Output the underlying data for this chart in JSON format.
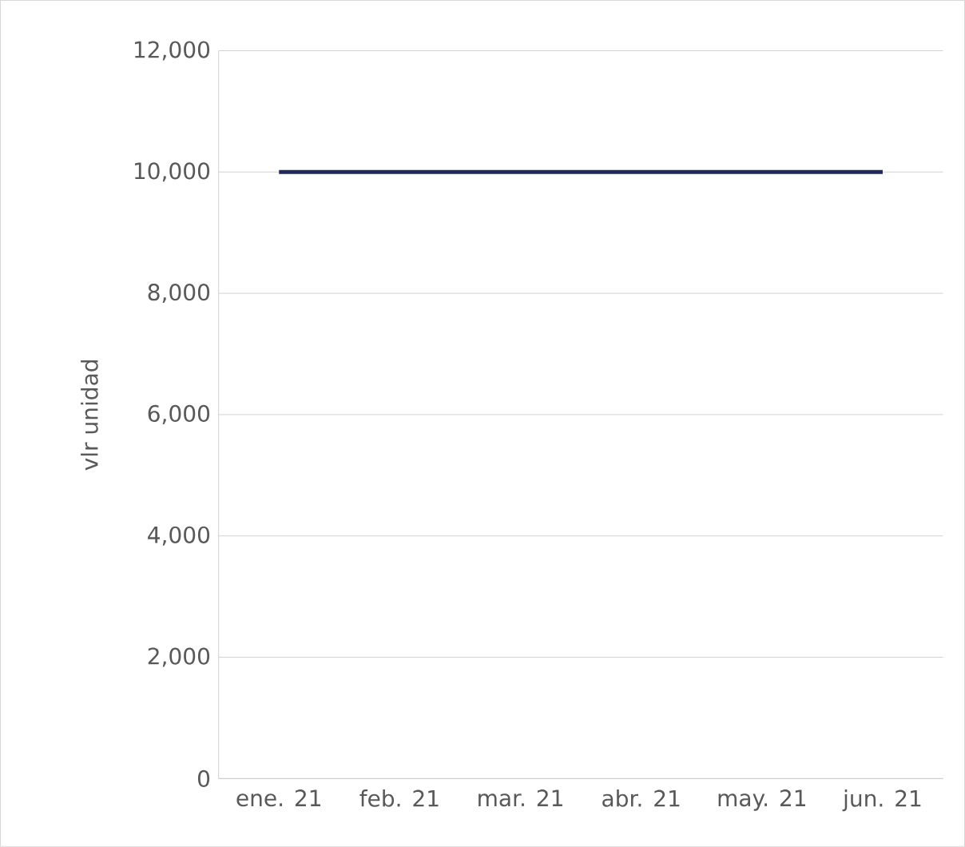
{
  "chart_data": {
    "type": "line",
    "ylabel": "vlr unidad",
    "categories": [
      "ene. 21",
      "feb. 21",
      "mar. 21",
      "abr. 21",
      "may. 21",
      "jun. 21"
    ],
    "series": [
      {
        "color": "#1f2a5c",
        "values": [
          10000,
          10000,
          10000,
          10000,
          10000,
          10000
        ]
      }
    ],
    "ylim": [
      0,
      12000
    ],
    "yticks": [
      {
        "value": 0,
        "label": "0"
      },
      {
        "value": 2000,
        "label": "2,000"
      },
      {
        "value": 4000,
        "label": "4,000"
      },
      {
        "value": 6000,
        "label": "6,000"
      },
      {
        "value": 8000,
        "label": "8,000"
      },
      {
        "value": 10000,
        "label": "10,000"
      },
      {
        "value": 12000,
        "label": "12,000"
      }
    ],
    "grid": "y",
    "marker": "none",
    "line_style": "solid"
  }
}
